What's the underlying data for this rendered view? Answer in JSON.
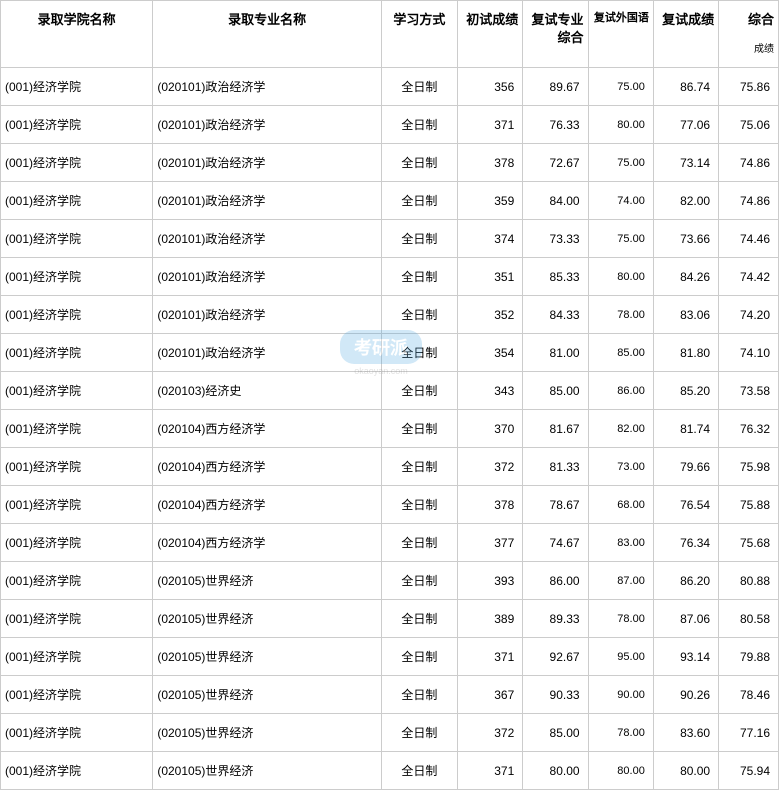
{
  "headers": {
    "college": "录取学院名称",
    "major": "录取专业名称",
    "study_mode": "学习方式",
    "prelim_score": "初试成绩",
    "retest_comp": "复试专业综合",
    "retest_lang": "复试外国语",
    "retest_score": "复试成绩",
    "total": "综合",
    "total_sub": "成绩"
  },
  "watermark": {
    "main": "考研派",
    "sub": "okaoyan.com"
  },
  "rows": [
    {
      "college": "(001)经济学院",
      "major": "(020101)政治经济学",
      "study": "全日制",
      "prelim": "356",
      "rcomp": "89.67",
      "rlang": "75.00",
      "rscore": "86.74",
      "total": "75.86"
    },
    {
      "college": "(001)经济学院",
      "major": "(020101)政治经济学",
      "study": "全日制",
      "prelim": "371",
      "rcomp": "76.33",
      "rlang": "80.00",
      "rscore": "77.06",
      "total": "75.06"
    },
    {
      "college": "(001)经济学院",
      "major": "(020101)政治经济学",
      "study": "全日制",
      "prelim": "378",
      "rcomp": "72.67",
      "rlang": "75.00",
      "rscore": "73.14",
      "total": "74.86"
    },
    {
      "college": "(001)经济学院",
      "major": "(020101)政治经济学",
      "study": "全日制",
      "prelim": "359",
      "rcomp": "84.00",
      "rlang": "74.00",
      "rscore": "82.00",
      "total": "74.86"
    },
    {
      "college": "(001)经济学院",
      "major": "(020101)政治经济学",
      "study": "全日制",
      "prelim": "374",
      "rcomp": "73.33",
      "rlang": "75.00",
      "rscore": "73.66",
      "total": "74.46"
    },
    {
      "college": "(001)经济学院",
      "major": "(020101)政治经济学",
      "study": "全日制",
      "prelim": "351",
      "rcomp": "85.33",
      "rlang": "80.00",
      "rscore": "84.26",
      "total": "74.42"
    },
    {
      "college": "(001)经济学院",
      "major": "(020101)政治经济学",
      "study": "全日制",
      "prelim": "352",
      "rcomp": "84.33",
      "rlang": "78.00",
      "rscore": "83.06",
      "total": "74.20"
    },
    {
      "college": "(001)经济学院",
      "major": "(020101)政治经济学",
      "study": "全日制",
      "prelim": "354",
      "rcomp": "81.00",
      "rlang": "85.00",
      "rscore": "81.80",
      "total": "74.10"
    },
    {
      "college": "(001)经济学院",
      "major": "(020103)经济史",
      "study": "全日制",
      "prelim": "343",
      "rcomp": "85.00",
      "rlang": "86.00",
      "rscore": "85.20",
      "total": "73.58"
    },
    {
      "college": "(001)经济学院",
      "major": "(020104)西方经济学",
      "study": "全日制",
      "prelim": "370",
      "rcomp": "81.67",
      "rlang": "82.00",
      "rscore": "81.74",
      "total": "76.32"
    },
    {
      "college": "(001)经济学院",
      "major": "(020104)西方经济学",
      "study": "全日制",
      "prelim": "372",
      "rcomp": "81.33",
      "rlang": "73.00",
      "rscore": "79.66",
      "total": "75.98"
    },
    {
      "college": "(001)经济学院",
      "major": "(020104)西方经济学",
      "study": "全日制",
      "prelim": "378",
      "rcomp": "78.67",
      "rlang": "68.00",
      "rscore": "76.54",
      "total": "75.88"
    },
    {
      "college": "(001)经济学院",
      "major": "(020104)西方经济学",
      "study": "全日制",
      "prelim": "377",
      "rcomp": "74.67",
      "rlang": "83.00",
      "rscore": "76.34",
      "total": "75.68"
    },
    {
      "college": "(001)经济学院",
      "major": "(020105)世界经济",
      "study": "全日制",
      "prelim": "393",
      "rcomp": "86.00",
      "rlang": "87.00",
      "rscore": "86.20",
      "total": "80.88"
    },
    {
      "college": "(001)经济学院",
      "major": "(020105)世界经济",
      "study": "全日制",
      "prelim": "389",
      "rcomp": "89.33",
      "rlang": "78.00",
      "rscore": "87.06",
      "total": "80.58"
    },
    {
      "college": "(001)经济学院",
      "major": "(020105)世界经济",
      "study": "全日制",
      "prelim": "371",
      "rcomp": "92.67",
      "rlang": "95.00",
      "rscore": "93.14",
      "total": "79.88"
    },
    {
      "college": "(001)经济学院",
      "major": "(020105)世界经济",
      "study": "全日制",
      "prelim": "367",
      "rcomp": "90.33",
      "rlang": "90.00",
      "rscore": "90.26",
      "total": "78.46"
    },
    {
      "college": "(001)经济学院",
      "major": "(020105)世界经济",
      "study": "全日制",
      "prelim": "372",
      "rcomp": "85.00",
      "rlang": "78.00",
      "rscore": "83.60",
      "total": "77.16"
    },
    {
      "college": "(001)经济学院",
      "major": "(020105)世界经济",
      "study": "全日制",
      "prelim": "371",
      "rcomp": "80.00",
      "rlang": "80.00",
      "rscore": "80.00",
      "total": "75.94"
    }
  ]
}
